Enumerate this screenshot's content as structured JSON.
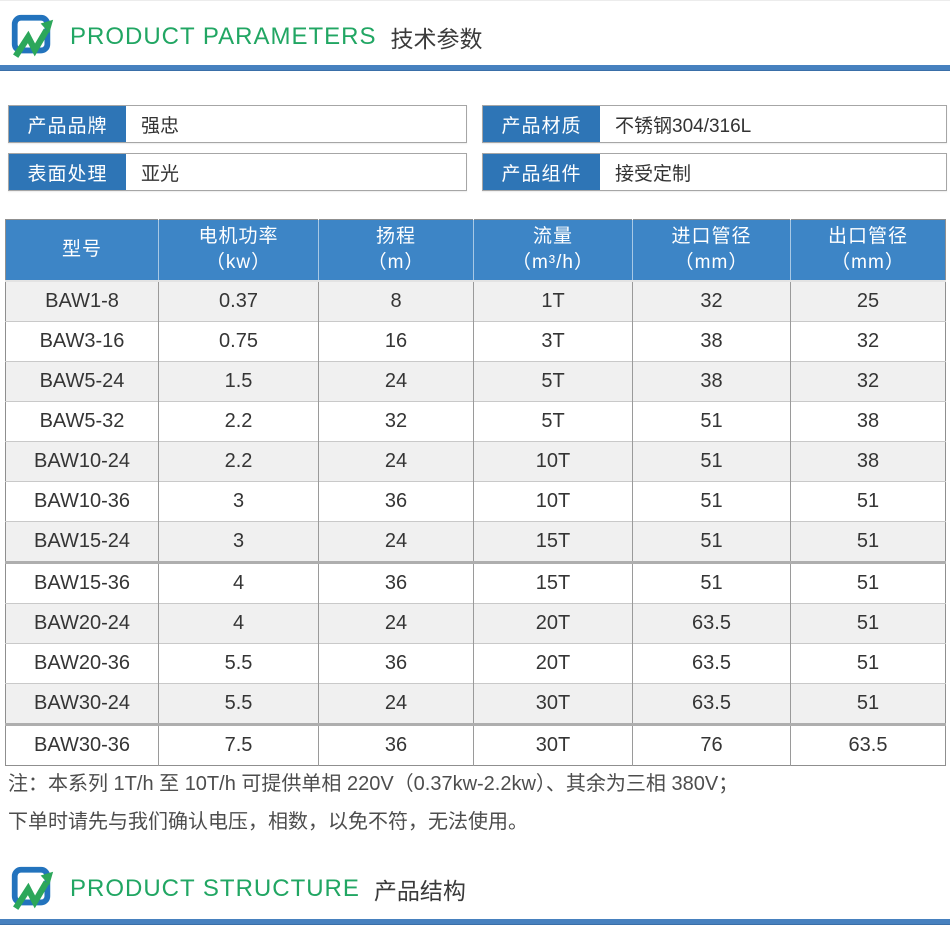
{
  "sections": {
    "parameters": {
      "title_en": "PRODUCT PARAMETERS",
      "title_zh": "技术参数"
    },
    "structure": {
      "title_en": "PRODUCT STRUCTURE",
      "title_zh": "产品结构"
    }
  },
  "fields": [
    {
      "label": "产品品牌",
      "value": "强忠"
    },
    {
      "label": "产品材质",
      "value": "不锈钢304/316L"
    },
    {
      "label": "表面处理",
      "value": "亚光"
    },
    {
      "label": "产品组件",
      "value": "接受定制"
    }
  ],
  "table": {
    "headers": [
      {
        "line1": "型号",
        "line2": ""
      },
      {
        "line1": "电机功率",
        "line2": "（kw）"
      },
      {
        "line1": "扬程",
        "line2": "（m）"
      },
      {
        "line1": "流量",
        "line2": "（m³/h）"
      },
      {
        "line1": "进口管径",
        "line2": "（mm）"
      },
      {
        "line1": "出口管径",
        "line2": "（mm）"
      }
    ],
    "rows": [
      [
        "BAW1-8",
        "0.37",
        "8",
        "1T",
        "32",
        "25"
      ],
      [
        "BAW3-16",
        "0.75",
        "16",
        "3T",
        "38",
        "32"
      ],
      [
        "BAW5-24",
        "1.5",
        "24",
        "5T",
        "38",
        "32"
      ],
      [
        "BAW5-32",
        "2.2",
        "32",
        "5T",
        "51",
        "38"
      ],
      [
        "BAW10-24",
        "2.2",
        "24",
        "10T",
        "51",
        "38"
      ],
      [
        "BAW10-36",
        "3",
        "36",
        "10T",
        "51",
        "51"
      ],
      [
        "BAW15-24",
        "3",
        "24",
        "15T",
        "51",
        "51"
      ],
      [
        "BAW15-36",
        "4",
        "36",
        "15T",
        "51",
        "51"
      ],
      [
        "BAW20-24",
        "4",
        "24",
        "20T",
        "63.5",
        "51"
      ],
      [
        "BAW20-36",
        "5.5",
        "36",
        "20T",
        "63.5",
        "51"
      ],
      [
        "BAW30-24",
        "5.5",
        "24",
        "30T",
        "63.5",
        "51"
      ],
      [
        "BAW30-36",
        "7.5",
        "36",
        "30T",
        "76",
        "63.5"
      ]
    ]
  },
  "note": {
    "line1": "注：本系列 1T/h 至 10T/h 可提供单相 220V（0.37kw-2.2kw）、其余为三相 380V；",
    "line2": "下单时请先与我们确认电压，相数，以免不符，无法使用。"
  },
  "colors": {
    "accent_blue_label": "#2e75b6",
    "table_header_blue": "#3d85c6",
    "divider_blue": "#4781bf",
    "title_green": "#21a663",
    "row_alt_gray": "#f0f0f0"
  },
  "icons": {
    "brand_logo": "blue-rounded-square-with-green-zigzag-arrow"
  }
}
